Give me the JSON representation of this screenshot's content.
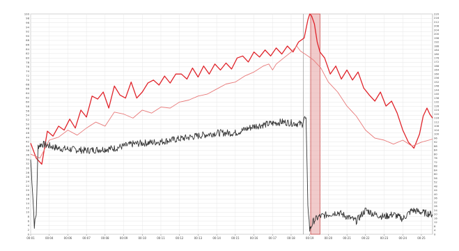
{
  "chart_data": {
    "type": "line",
    "grid": true,
    "x": {
      "tick_labels": [
        "00:01",
        "00:04",
        "00:06",
        "00:07",
        "00:08",
        "00:09",
        "00:10",
        "00:11",
        "00:12",
        "00:13",
        "00:14",
        "00:15",
        "00:16",
        "00:17",
        "00:18",
        "00:19",
        "00:20",
        "00:21",
        "00:22",
        "00:23",
        "00:24",
        "00:25"
      ],
      "xlim": [
        0,
        21.6
      ]
    },
    "y_left": {
      "ylim": [
        0,
        100
      ]
    },
    "y_right": {
      "ylim": [
        0,
        220
      ]
    },
    "highlight": {
      "x_start": 15.05,
      "x_end": 15.55,
      "label": "",
      "color": "#e8a8a8"
    },
    "markers": [
      14.65
    ],
    "series": [
      {
        "axis": "right",
        "color": "#e0232a",
        "width": 1.3,
        "points": [
          [
            0,
            91
          ],
          [
            0.3,
            76
          ],
          [
            0.6,
            70
          ],
          [
            0.9,
            103
          ],
          [
            1.2,
            98
          ],
          [
            1.5,
            108
          ],
          [
            1.8,
            104
          ],
          [
            2.1,
            115
          ],
          [
            2.4,
            106
          ],
          [
            2.7,
            124
          ],
          [
            3.0,
            117
          ],
          [
            3.3,
            138
          ],
          [
            3.6,
            135
          ],
          [
            3.9,
            142
          ],
          [
            4.2,
            126
          ],
          [
            4.5,
            148
          ],
          [
            4.8,
            139
          ],
          [
            5.1,
            136
          ],
          [
            5.4,
            152
          ],
          [
            5.7,
            136
          ],
          [
            6.0,
            142
          ],
          [
            6.3,
            151
          ],
          [
            6.6,
            154
          ],
          [
            6.9,
            149
          ],
          [
            7.2,
            158
          ],
          [
            7.5,
            151
          ],
          [
            7.8,
            160
          ],
          [
            8.1,
            160
          ],
          [
            8.4,
            155
          ],
          [
            8.7,
            166
          ],
          [
            9.0,
            157
          ],
          [
            9.3,
            168
          ],
          [
            9.6,
            160
          ],
          [
            9.9,
            170
          ],
          [
            10.2,
            164
          ],
          [
            10.5,
            171
          ],
          [
            10.8,
            165
          ],
          [
            11.1,
            176
          ],
          [
            11.4,
            178
          ],
          [
            11.7,
            172
          ],
          [
            12.0,
            182
          ],
          [
            12.3,
            177
          ],
          [
            12.6,
            184
          ],
          [
            12.9,
            178
          ],
          [
            13.2,
            186
          ],
          [
            13.5,
            180
          ],
          [
            13.8,
            188
          ],
          [
            14.1,
            182
          ],
          [
            14.4,
            192
          ],
          [
            14.7,
            196
          ],
          [
            14.9,
            214
          ],
          [
            15.0,
            220
          ],
          [
            15.1,
            218
          ],
          [
            15.25,
            210
          ],
          [
            15.4,
            192
          ],
          [
            15.55,
            182
          ],
          [
            15.8,
            176
          ],
          [
            16.1,
            160
          ],
          [
            16.4,
            168
          ],
          [
            16.7,
            155
          ],
          [
            17.0,
            164
          ],
          [
            17.3,
            154
          ],
          [
            17.6,
            162
          ],
          [
            17.9,
            146
          ],
          [
            18.2,
            139
          ],
          [
            18.5,
            133
          ],
          [
            18.8,
            142
          ],
          [
            19.1,
            128
          ],
          [
            19.4,
            133
          ],
          [
            19.7,
            121
          ],
          [
            20.0,
            104
          ],
          [
            20.3,
            92
          ],
          [
            20.6,
            86
          ],
          [
            20.9,
            100
          ],
          [
            21.1,
            118
          ],
          [
            21.3,
            126
          ],
          [
            21.45,
            120
          ],
          [
            21.6,
            116
          ]
        ]
      },
      {
        "axis": "right",
        "color": "#e87878",
        "width": 0.9,
        "points": [
          [
            0,
            80
          ],
          [
            0.5,
            76
          ],
          [
            1.0,
            94
          ],
          [
            1.5,
            97
          ],
          [
            2.0,
            104
          ],
          [
            2.5,
            99
          ],
          [
            3.0,
            106
          ],
          [
            3.5,
            112
          ],
          [
            4.0,
            108
          ],
          [
            4.5,
            122
          ],
          [
            5.0,
            120
          ],
          [
            5.5,
            116
          ],
          [
            6.0,
            124
          ],
          [
            6.5,
            121
          ],
          [
            7.0,
            127
          ],
          [
            7.5,
            126
          ],
          [
            8.0,
            132
          ],
          [
            8.5,
            134
          ],
          [
            9.0,
            138
          ],
          [
            9.5,
            140
          ],
          [
            10.0,
            145
          ],
          [
            10.5,
            150
          ],
          [
            11.0,
            152
          ],
          [
            11.5,
            158
          ],
          [
            12.0,
            162
          ],
          [
            12.5,
            168
          ],
          [
            12.8,
            170
          ],
          [
            13.0,
            164
          ],
          [
            13.2,
            170
          ],
          [
            13.6,
            176
          ],
          [
            14.0,
            182
          ],
          [
            14.3,
            188
          ],
          [
            14.5,
            183
          ],
          [
            14.9,
            178
          ],
          [
            15.2,
            174
          ],
          [
            15.6,
            166
          ],
          [
            16.0,
            152
          ],
          [
            16.5,
            142
          ],
          [
            17.0,
            128
          ],
          [
            17.5,
            118
          ],
          [
            18.0,
            104
          ],
          [
            18.5,
            96
          ],
          [
            19.0,
            94
          ],
          [
            19.5,
            90
          ],
          [
            20.0,
            94
          ],
          [
            20.5,
            88
          ],
          [
            21.0,
            92
          ],
          [
            21.6,
            95
          ]
        ]
      },
      {
        "axis": "left",
        "color": "#333333",
        "width": 0.9,
        "noise": 1.6,
        "points": [
          [
            0,
            34
          ],
          [
            0.1,
            20
          ],
          [
            0.2,
            4
          ],
          [
            0.3,
            9
          ],
          [
            0.4,
            40
          ],
          [
            0.6,
            41
          ],
          [
            1.5,
            39
          ],
          [
            3.0,
            38
          ],
          [
            4.5,
            39
          ],
          [
            5.5,
            41
          ],
          [
            7.0,
            42
          ],
          [
            8.5,
            44
          ],
          [
            10.0,
            46
          ],
          [
            11.0,
            46
          ],
          [
            12.0,
            49
          ],
          [
            13.5,
            51
          ],
          [
            14.6,
            50
          ],
          [
            14.7,
            53
          ],
          [
            14.8,
            52
          ],
          [
            14.9,
            14
          ],
          [
            15.0,
            2
          ],
          [
            15.2,
            6
          ],
          [
            15.5,
            8
          ],
          [
            16.5,
            10
          ],
          [
            17.0,
            8
          ],
          [
            17.5,
            6
          ],
          [
            18.0,
            11
          ],
          [
            18.5,
            9
          ],
          [
            19.0,
            8
          ],
          [
            19.5,
            9
          ],
          [
            20.0,
            7
          ],
          [
            20.5,
            11
          ],
          [
            21.0,
            10
          ],
          [
            21.6,
            9
          ]
        ]
      }
    ]
  }
}
